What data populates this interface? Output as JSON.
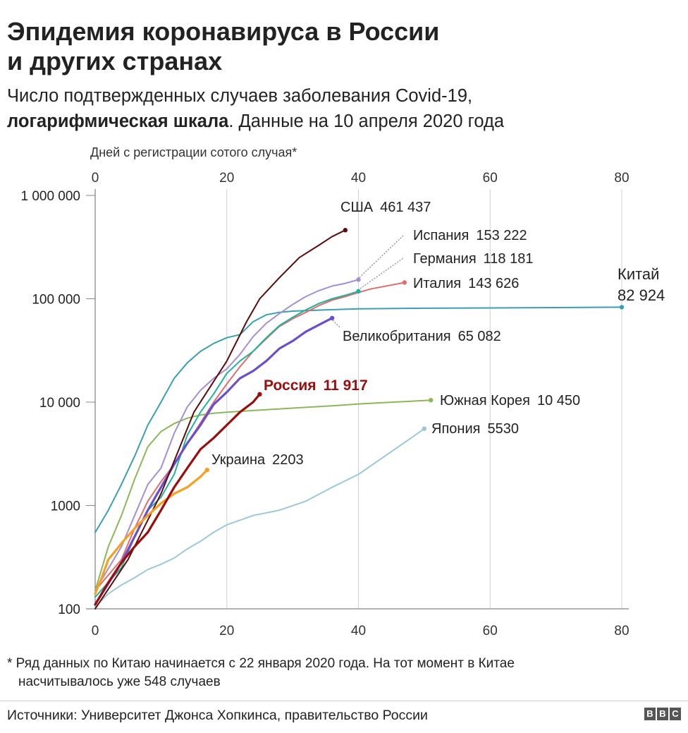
{
  "title_line1": "Эпидемия коронавируса в России",
  "title_line2": "и других странах",
  "subtitle_part1": "Число подтвержденных случаев заболевания Covid-19,",
  "subtitle_bold": "логарифмическая шкала",
  "subtitle_part2": ". Данные на 10 апреля 2020 года",
  "footnote_line1": "* Ряд данных по Китаю начинается с 22 января 2020 года. На тот момент в Китае",
  "footnote_line2": "насчитывалось уже 548 случаев",
  "source": "Источники: Университет Джонса Хопкинса, правительство России",
  "logo": [
    "B",
    "B",
    "C"
  ],
  "chart_data": {
    "type": "line",
    "xlabel": "Дней с регистрации сотого случая*",
    "ylabel": "",
    "xlim": [
      0,
      80
    ],
    "ylim": [
      100,
      1000000
    ],
    "yscale": "log",
    "grid": "vertical",
    "x_ticks": [
      0,
      20,
      40,
      60,
      80
    ],
    "x_tick_labels": [
      "0",
      "20",
      "40",
      "60",
      "80"
    ],
    "y_ticks": [
      100,
      1000,
      10000,
      100000,
      1000000
    ],
    "y_tick_labels": [
      "100",
      "1000",
      "10 000",
      "100 000",
      "1 000 000"
    ],
    "series": [
      {
        "name": "США",
        "value_label": "461 437",
        "color": "#5c0a0a",
        "x": [
          0,
          5,
          10,
          15,
          20,
          23,
          25,
          28,
          31,
          34,
          36,
          38
        ],
        "y": [
          100,
          300,
          1300,
          8000,
          25000,
          60000,
          100000,
          160000,
          250000,
          330000,
          400000,
          461437
        ]
      },
      {
        "name": "Испания",
        "value_label": "153 222",
        "color": "#a38fd6",
        "x": [
          0,
          4,
          6,
          8,
          10,
          12,
          14,
          16,
          18,
          20,
          22,
          24,
          26,
          28,
          30,
          32,
          34,
          36,
          38,
          40
        ],
        "y": [
          150,
          400,
          800,
          1600,
          2300,
          5000,
          9000,
          13000,
          17000,
          21000,
          29000,
          43000,
          58000,
          72000,
          88000,
          105000,
          120000,
          133000,
          141000,
          153222
        ]
      },
      {
        "name": "Германия",
        "value_label": "118 181",
        "color": "#1fb39a",
        "x": [
          0,
          4,
          6,
          8,
          10,
          12,
          14,
          16,
          18,
          20,
          22,
          24,
          26,
          28,
          30,
          32,
          34,
          36,
          38,
          40
        ],
        "y": [
          130,
          250,
          500,
          900,
          1200,
          2000,
          4800,
          8000,
          12000,
          19000,
          25000,
          31000,
          42000,
          55000,
          66000,
          78000,
          90000,
          100000,
          108000,
          118181
        ]
      },
      {
        "name": "Италия",
        "value_label": "143 626",
        "color": "#e06c6c",
        "x": [
          0,
          4,
          6,
          8,
          10,
          12,
          14,
          16,
          18,
          20,
          22,
          24,
          26,
          28,
          30,
          32,
          34,
          36,
          38,
          40,
          42,
          44,
          47
        ],
        "y": [
          150,
          300,
          600,
          1100,
          1700,
          2500,
          4000,
          6300,
          10000,
          15000,
          22000,
          31000,
          41000,
          54000,
          64000,
          74000,
          86000,
          97000,
          105000,
          115000,
          125000,
          132000,
          143626
        ]
      },
      {
        "name": "Китай",
        "value_label": "82 924",
        "color": "#3a9fb0",
        "x": [
          0,
          2,
          4,
          6,
          8,
          10,
          12,
          14,
          16,
          18,
          20,
          22,
          24,
          26,
          28,
          30,
          35,
          40,
          50,
          60,
          70,
          80
        ],
        "y": [
          548,
          900,
          1600,
          3000,
          6000,
          10000,
          17000,
          24000,
          31000,
          37000,
          42000,
          45000,
          60000,
          70000,
          74000,
          76000,
          78000,
          80000,
          81000,
          81500,
          82100,
          82924
        ]
      },
      {
        "name": "Великобритания",
        "value_label": "65 082",
        "color": "#6b4fc9",
        "x": [
          0,
          4,
          6,
          8,
          10,
          12,
          14,
          16,
          18,
          20,
          22,
          24,
          26,
          28,
          30,
          32,
          34,
          36
        ],
        "y": [
          110,
          280,
          500,
          900,
          1500,
          2500,
          4000,
          6000,
          9500,
          12500,
          17000,
          20000,
          25000,
          33000,
          39000,
          48000,
          56000,
          65082
        ]
      },
      {
        "name": "Россия",
        "value_label": "11 917",
        "color": "#9b0d0d",
        "x": [
          0,
          2,
          4,
          6,
          8,
          10,
          12,
          14,
          16,
          18,
          20,
          22,
          24,
          25
        ],
        "y": [
          110,
          180,
          280,
          400,
          550,
          900,
          1500,
          2300,
          3500,
          4500,
          6000,
          8000,
          10000,
          11917
        ]
      },
      {
        "name": "Южная Корея",
        "value_label": "10 450",
        "color": "#8ab85a",
        "x": [
          0,
          2,
          4,
          6,
          8,
          10,
          12,
          14,
          16,
          18,
          20,
          24,
          28,
          32,
          36,
          40,
          44,
          48,
          51
        ],
        "y": [
          150,
          400,
          800,
          1800,
          3700,
          5200,
          6200,
          7000,
          7500,
          7800,
          8000,
          8300,
          8600,
          8900,
          9200,
          9600,
          9900,
          10200,
          10450
        ]
      },
      {
        "name": "Япония",
        "value_label": "5530",
        "color": "#9cc8d8",
        "x": [
          0,
          2,
          4,
          6,
          8,
          10,
          12,
          14,
          16,
          18,
          20,
          24,
          28,
          32,
          36,
          40,
          44,
          48,
          50
        ],
        "y": [
          105,
          140,
          170,
          200,
          240,
          270,
          310,
          380,
          450,
          550,
          650,
          800,
          900,
          1100,
          1500,
          2000,
          3000,
          4500,
          5530
        ]
      },
      {
        "name": "Украина",
        "value_label": "2203",
        "color": "#f5a020",
        "x": [
          0,
          1,
          2,
          4,
          6,
          8,
          10,
          12,
          14,
          16,
          17
        ],
        "y": [
          140,
          200,
          300,
          430,
          600,
          800,
          1050,
          1300,
          1500,
          1900,
          2203
        ]
      }
    ]
  }
}
